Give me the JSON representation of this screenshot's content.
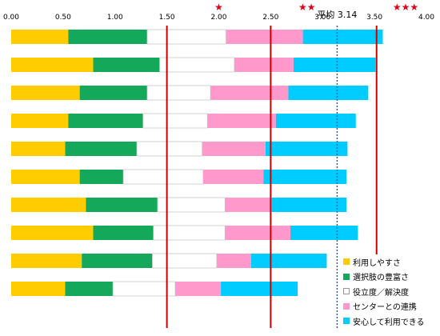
{
  "chart_data": {
    "type": "bar",
    "stacked": true,
    "orientation": "horizontal",
    "xlim": [
      0,
      4
    ],
    "xticks": [
      "0.00",
      "0.50",
      "1.00",
      "1.50",
      "2.00",
      "2.50",
      "3.00",
      "3.50",
      "4.00"
    ],
    "series": [
      {
        "name": "利用しやすさ",
        "color": "#ffcc00",
        "values": [
          0.55,
          0.79,
          0.66,
          0.55,
          0.52,
          0.66,
          0.72,
          0.79,
          0.68,
          0.52
        ]
      },
      {
        "name": "選択肢の豊富さ",
        "color": "#14a85a",
        "values": [
          0.76,
          0.64,
          0.65,
          0.72,
          0.69,
          0.42,
          0.69,
          0.58,
          0.68,
          0.46
        ]
      },
      {
        "name": "役立度／解決度",
        "color": "#ffffff",
        "values": [
          0.76,
          0.72,
          0.61,
          0.62,
          0.63,
          0.77,
          0.65,
          0.69,
          0.62,
          0.6
        ]
      },
      {
        "name": "センターとの連携",
        "color": "#ff99cc",
        "values": [
          0.74,
          0.57,
          0.75,
          0.66,
          0.61,
          0.58,
          0.45,
          0.63,
          0.33,
          0.44
        ]
      },
      {
        "name": "安心して利用できる",
        "color": "#00ccff",
        "values": [
          0.77,
          0.79,
          0.77,
          0.77,
          0.79,
          0.8,
          0.72,
          0.65,
          0.73,
          0.74
        ]
      }
    ],
    "reference_lines": [
      {
        "value": 1.5,
        "style": "solid",
        "color": "#cc0000"
      },
      {
        "value": 2.5,
        "style": "solid",
        "color": "#cc0000"
      },
      {
        "value": 3.14,
        "style": "dotted",
        "color": "#1f5fa6",
        "label": "平均 3.14"
      },
      {
        "value": 3.52,
        "style": "solid",
        "color": "#cc0000"
      }
    ],
    "star_markers": [
      {
        "value": 2.0,
        "label": "★"
      },
      {
        "value": 2.85,
        "label": "★★"
      },
      {
        "value": 3.8,
        "label": "★★★"
      }
    ],
    "legend_position": "bottom-right",
    "grid": false
  }
}
